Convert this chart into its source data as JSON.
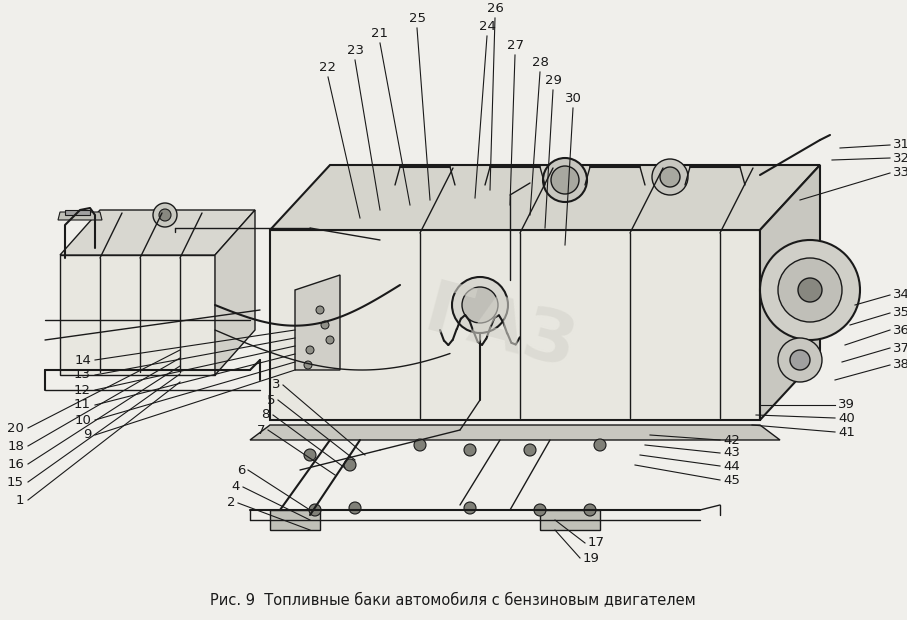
{
  "title": "Рис. 9  Топливные баки автомобиля с бензиновым двигателем",
  "title_fontsize": 10.5,
  "bg_color": "#f0efeb",
  "line_color": "#1a1a1a",
  "label_color": "#1a1a1a",
  "label_fontsize": 9.5,
  "fig_width": 9.07,
  "fig_height": 6.2,
  "dpi": 100,
  "watermark_color": "#d0cfc8",
  "watermark_alpha": 0.5
}
